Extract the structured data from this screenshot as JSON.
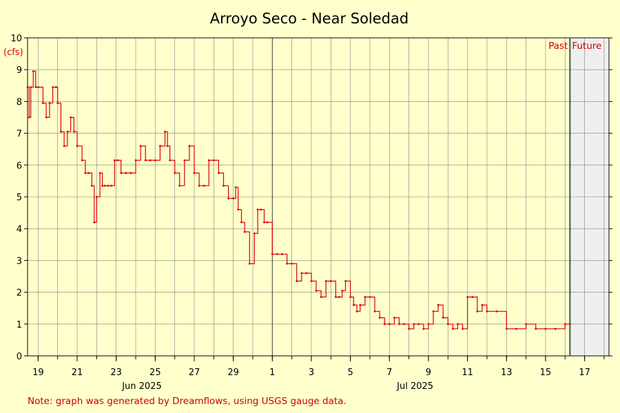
{
  "colors": {
    "background": "#ffffcc",
    "plot_background": "#ffffcc",
    "future_background": "#efefef",
    "grid": "#7f7f7f",
    "line": "#dd0000",
    "text_red": "#cc0000",
    "now_line": "#2f5f4f"
  },
  "chart_data": {
    "type": "line",
    "title": "Arroyo Seco - Near Soledad",
    "ylabel": "(cfs)",
    "xlabel": "",
    "ylim": [
      0,
      10
    ],
    "yticks": [
      0,
      1,
      2,
      3,
      4,
      5,
      6,
      7,
      8,
      9,
      10
    ],
    "xlim": [
      "2025-06-18T11:00",
      "2025-07-18T06:00"
    ],
    "xticks": [
      {
        "date": "2025-06-19",
        "label": "19"
      },
      {
        "date": "2025-06-21",
        "label": "21"
      },
      {
        "date": "2025-06-23",
        "label": "23"
      },
      {
        "date": "2025-06-25",
        "label": "25"
      },
      {
        "date": "2025-06-27",
        "label": "27"
      },
      {
        "date": "2025-06-29",
        "label": "29"
      },
      {
        "date": "2025-07-01",
        "label": "1"
      },
      {
        "date": "2025-07-03",
        "label": "3"
      },
      {
        "date": "2025-07-05",
        "label": "5"
      },
      {
        "date": "2025-07-07",
        "label": "7"
      },
      {
        "date": "2025-07-09",
        "label": "9"
      },
      {
        "date": "2025-07-11",
        "label": "11"
      },
      {
        "date": "2025-07-13",
        "label": "13"
      },
      {
        "date": "2025-07-15",
        "label": "15"
      },
      {
        "date": "2025-07-17",
        "label": "17"
      }
    ],
    "month_labels": [
      {
        "date": "2025-06-24",
        "label": "Jun 2025"
      },
      {
        "date": "2025-07-08",
        "label": "Jul 2025"
      }
    ],
    "month_boundary": "2025-07-01",
    "now": "2025-07-16T06:00",
    "past_label": "Past",
    "future_label": "Future",
    "grid": true,
    "legend": "none",
    "note": "Note: graph was generated by Dreamflows, using USGS gauge data.",
    "series": [
      {
        "x": [
          "2025-06-18T11:00",
          "2025-06-18T13:00",
          "2025-06-18T15:00",
          "2025-06-18T18:00",
          "2025-06-18T21:00",
          "2025-06-19T00:00",
          "2025-06-19T06:00",
          "2025-06-19T10:00",
          "2025-06-19T14:00",
          "2025-06-19T18:00",
          "2025-06-19T22:00",
          "2025-06-20T00:00",
          "2025-06-20T04:00",
          "2025-06-20T08:00",
          "2025-06-20T12:00",
          "2025-06-20T16:00",
          "2025-06-20T20:00",
          "2025-06-21T00:00",
          "2025-06-21T06:00",
          "2025-06-21T10:00",
          "2025-06-21T14:00",
          "2025-06-21T18:00",
          "2025-06-21T21:00",
          "2025-06-22T00:00",
          "2025-06-22T04:00",
          "2025-06-22T07:00",
          "2025-06-22T10:00",
          "2025-06-22T14:00",
          "2025-06-22T18:00",
          "2025-06-22T22:00",
          "2025-06-23T02:00",
          "2025-06-23T06:00",
          "2025-06-23T12:00",
          "2025-06-23T18:00",
          "2025-06-24T00:00",
          "2025-06-24T06:00",
          "2025-06-24T12:00",
          "2025-06-24T18:00",
          "2025-06-25T00:00",
          "2025-06-25T06:00",
          "2025-06-25T12:00",
          "2025-06-25T15:00",
          "2025-06-25T18:00",
          "2025-06-26T00:00",
          "2025-06-26T06:00",
          "2025-06-26T12:00",
          "2025-06-26T18:00",
          "2025-06-27T00:00",
          "2025-06-27T06:00",
          "2025-06-27T12:00",
          "2025-06-27T18:00",
          "2025-06-28T00:00",
          "2025-06-28T06:00",
          "2025-06-28T12:00",
          "2025-06-28T18:00",
          "2025-06-29T00:00",
          "2025-06-29T03:00",
          "2025-06-29T06:00",
          "2025-06-29T10:00",
          "2025-06-29T14:00",
          "2025-06-29T20:00",
          "2025-06-30T02:00",
          "2025-06-30T06:00",
          "2025-06-30T10:00",
          "2025-06-30T14:00",
          "2025-06-30T18:00",
          "2025-07-01T00:00",
          "2025-07-01T06:00",
          "2025-07-01T12:00",
          "2025-07-01T18:00",
          "2025-07-02T00:00",
          "2025-07-02T06:00",
          "2025-07-02T12:00",
          "2025-07-02T18:00",
          "2025-07-03T00:00",
          "2025-07-03T06:00",
          "2025-07-03T12:00",
          "2025-07-03T18:00",
          "2025-07-04T00:00",
          "2025-07-04T06:00",
          "2025-07-04T10:00",
          "2025-07-04T14:00",
          "2025-07-04T18:00",
          "2025-07-05T00:00",
          "2025-07-05T04:00",
          "2025-07-05T08:00",
          "2025-07-05T12:00",
          "2025-07-05T18:00",
          "2025-07-06T00:00",
          "2025-07-06T06:00",
          "2025-07-06T12:00",
          "2025-07-06T18:00",
          "2025-07-07T00:00",
          "2025-07-07T06:00",
          "2025-07-07T12:00",
          "2025-07-07T18:00",
          "2025-07-08T00:00",
          "2025-07-08T06:00",
          "2025-07-08T12:00",
          "2025-07-08T18:00",
          "2025-07-09T00:00",
          "2025-07-09T06:00",
          "2025-07-09T12:00",
          "2025-07-09T18:00",
          "2025-07-10T00:00",
          "2025-07-10T06:00",
          "2025-07-10T12:00",
          "2025-07-10T18:00",
          "2025-07-11T00:00",
          "2025-07-11T06:00",
          "2025-07-11T12:00",
          "2025-07-11T18:00",
          "2025-07-12T00:00",
          "2025-07-12T12:00",
          "2025-07-13T00:00",
          "2025-07-13T12:00",
          "2025-07-14T00:00",
          "2025-07-14T12:00",
          "2025-07-15T00:00",
          "2025-07-15T12:00",
          "2025-07-16T00:00",
          "2025-07-16T06:00"
        ],
        "y": [
          8.45,
          7.5,
          8.45,
          8.95,
          8.45,
          8.45,
          7.95,
          7.5,
          7.95,
          8.45,
          8.45,
          7.95,
          7.05,
          6.6,
          7.05,
          7.5,
          7.05,
          6.6,
          6.15,
          5.75,
          5.75,
          5.35,
          4.2,
          5.0,
          5.75,
          5.35,
          5.35,
          5.35,
          5.35,
          6.15,
          6.15,
          5.75,
          5.75,
          5.75,
          6.15,
          6.6,
          6.15,
          6.15,
          6.15,
          6.6,
          7.05,
          6.6,
          6.15,
          5.75,
          5.35,
          6.15,
          6.6,
          5.75,
          5.35,
          5.35,
          6.15,
          6.15,
          5.75,
          5.35,
          4.95,
          4.95,
          5.3,
          4.6,
          4.2,
          3.9,
          2.9,
          3.85,
          4.6,
          4.6,
          4.2,
          4.2,
          3.2,
          3.2,
          3.2,
          2.9,
          2.9,
          2.35,
          2.6,
          2.6,
          2.35,
          2.05,
          1.85,
          2.35,
          2.35,
          1.85,
          1.85,
          2.05,
          2.35,
          1.85,
          1.6,
          1.4,
          1.6,
          1.85,
          1.85,
          1.4,
          1.2,
          1.0,
          1.0,
          1.2,
          1.0,
          1.0,
          0.85,
          1.0,
          1.0,
          0.85,
          1.0,
          1.4,
          1.6,
          1.2,
          1.0,
          0.85,
          1.0,
          0.85,
          1.85,
          1.85,
          1.4,
          1.6,
          1.4,
          1.4,
          0.85,
          0.85,
          1.0,
          0.85,
          0.85,
          0.85,
          1.0,
          1.0
        ]
      }
    ]
  }
}
